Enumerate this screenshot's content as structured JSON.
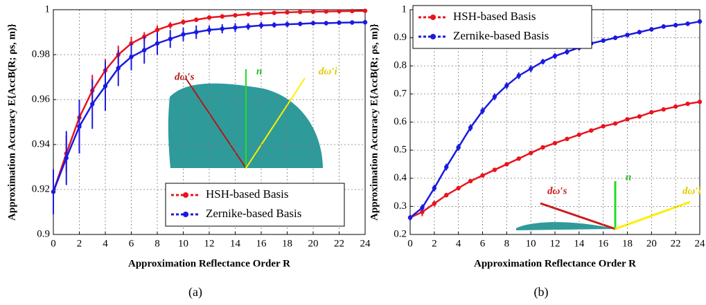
{
  "chart_data": [
    {
      "type": "line",
      "caption": "(a)",
      "xlabel": "Approximation Reflectance Order R",
      "ylabel": "Approximation Accuracy E{AccB(R; ρs, m)}",
      "x": [
        0,
        1,
        2,
        3,
        4,
        5,
        6,
        7,
        8,
        9,
        10,
        11,
        12,
        13,
        14,
        15,
        16,
        17,
        18,
        19,
        20,
        21,
        22,
        23,
        24
      ],
      "xlim": [
        0,
        24
      ],
      "xticks": [
        0,
        2,
        4,
        6,
        8,
        10,
        12,
        14,
        16,
        18,
        20,
        22,
        24
      ],
      "ylim": [
        0.9,
        1
      ],
      "yticks": [
        0.9,
        0.92,
        0.94,
        0.96,
        0.98,
        1
      ],
      "grid": true,
      "legend": "lower right",
      "annotations": [
        "dω′s",
        "n",
        "dω′i"
      ],
      "series": [
        {
          "name": "HSH-based Basis",
          "color": "#e8141e",
          "values": [
            0.919,
            0.936,
            0.952,
            0.964,
            0.973,
            0.98,
            0.985,
            0.988,
            0.991,
            0.993,
            0.9945,
            0.9955,
            0.9965,
            0.997,
            0.9975,
            0.998,
            0.9983,
            0.9986,
            0.9988,
            0.999,
            0.9991,
            0.9992,
            0.9993,
            0.9994,
            0.9995
          ],
          "errors": [
            0.01,
            0.008,
            0.008,
            0.007,
            0.005,
            0.004,
            0.003,
            0.002,
            0.002,
            0.0015,
            0.0012,
            0.001,
            0.001,
            0.001,
            0.0008,
            0.0008,
            0.0007,
            0.0007,
            0.0006,
            0.0006,
            0.0005,
            0.0005,
            0.0005,
            0.0005,
            0.0005
          ]
        },
        {
          "name": "Zernike-based Basis",
          "color": "#1a1ae0",
          "values": [
            0.919,
            0.934,
            0.948,
            0.958,
            0.966,
            0.974,
            0.979,
            0.982,
            0.985,
            0.987,
            0.989,
            0.99,
            0.991,
            0.9915,
            0.992,
            0.9925,
            0.993,
            0.9932,
            0.9935,
            0.9937,
            0.994,
            0.994,
            0.9942,
            0.9943,
            0.9944
          ],
          "errors": [
            0.01,
            0.012,
            0.012,
            0.011,
            0.011,
            0.008,
            0.006,
            0.006,
            0.005,
            0.004,
            0.003,
            0.003,
            0.002,
            0.002,
            0.002,
            0.0015,
            0.0015,
            0.0012,
            0.0012,
            0.001,
            0.001,
            0.001,
            0.001,
            0.001,
            0.001
          ]
        }
      ]
    },
    {
      "type": "line",
      "caption": "(b)",
      "xlabel": "Approximation Reflectance Order R",
      "ylabel": "Approximation Accuracy E{AccB(R; ρs, m)}",
      "x": [
        0,
        1,
        2,
        3,
        4,
        5,
        6,
        7,
        8,
        9,
        10,
        11,
        12,
        13,
        14,
        15,
        16,
        17,
        18,
        19,
        20,
        21,
        22,
        23,
        24
      ],
      "xlim": [
        0,
        24
      ],
      "xticks": [
        0,
        2,
        4,
        6,
        8,
        10,
        12,
        14,
        16,
        18,
        20,
        22,
        24
      ],
      "ylim": [
        0.2,
        1
      ],
      "yticks": [
        0.2,
        0.3,
        0.4,
        0.5,
        0.6,
        0.7,
        0.8,
        0.9,
        1
      ],
      "grid": true,
      "legend": "upper left",
      "annotations": [
        "dω′s",
        "n",
        "dω′i"
      ],
      "series": [
        {
          "name": "HSH-based Basis",
          "color": "#e8141e",
          "values": [
            0.26,
            0.28,
            0.31,
            0.34,
            0.365,
            0.39,
            0.41,
            0.43,
            0.45,
            0.47,
            0.49,
            0.51,
            0.525,
            0.54,
            0.555,
            0.57,
            0.585,
            0.595,
            0.61,
            0.62,
            0.635,
            0.645,
            0.655,
            0.665,
            0.672
          ],
          "errors": [
            0.01,
            0.015,
            0.01,
            0.008,
            0.008,
            0.007,
            0.007,
            0.007,
            0.007,
            0.007,
            0.007,
            0.007,
            0.007,
            0.007,
            0.007,
            0.007,
            0.007,
            0.007,
            0.007,
            0.007,
            0.007,
            0.007,
            0.007,
            0.007,
            0.007
          ]
        },
        {
          "name": "Zernike-based Basis",
          "color": "#1a1ae0",
          "values": [
            0.26,
            0.295,
            0.365,
            0.44,
            0.51,
            0.58,
            0.64,
            0.69,
            0.73,
            0.765,
            0.79,
            0.815,
            0.835,
            0.85,
            0.865,
            0.88,
            0.89,
            0.9,
            0.91,
            0.92,
            0.93,
            0.94,
            0.945,
            0.95,
            0.958
          ],
          "errors": [
            0.01,
            0.012,
            0.012,
            0.012,
            0.012,
            0.012,
            0.012,
            0.012,
            0.012,
            0.012,
            0.012,
            0.01,
            0.01,
            0.01,
            0.01,
            0.008,
            0.008,
            0.008,
            0.008,
            0.008,
            0.008,
            0.008,
            0.008,
            0.008,
            0.008
          ]
        }
      ]
    }
  ]
}
